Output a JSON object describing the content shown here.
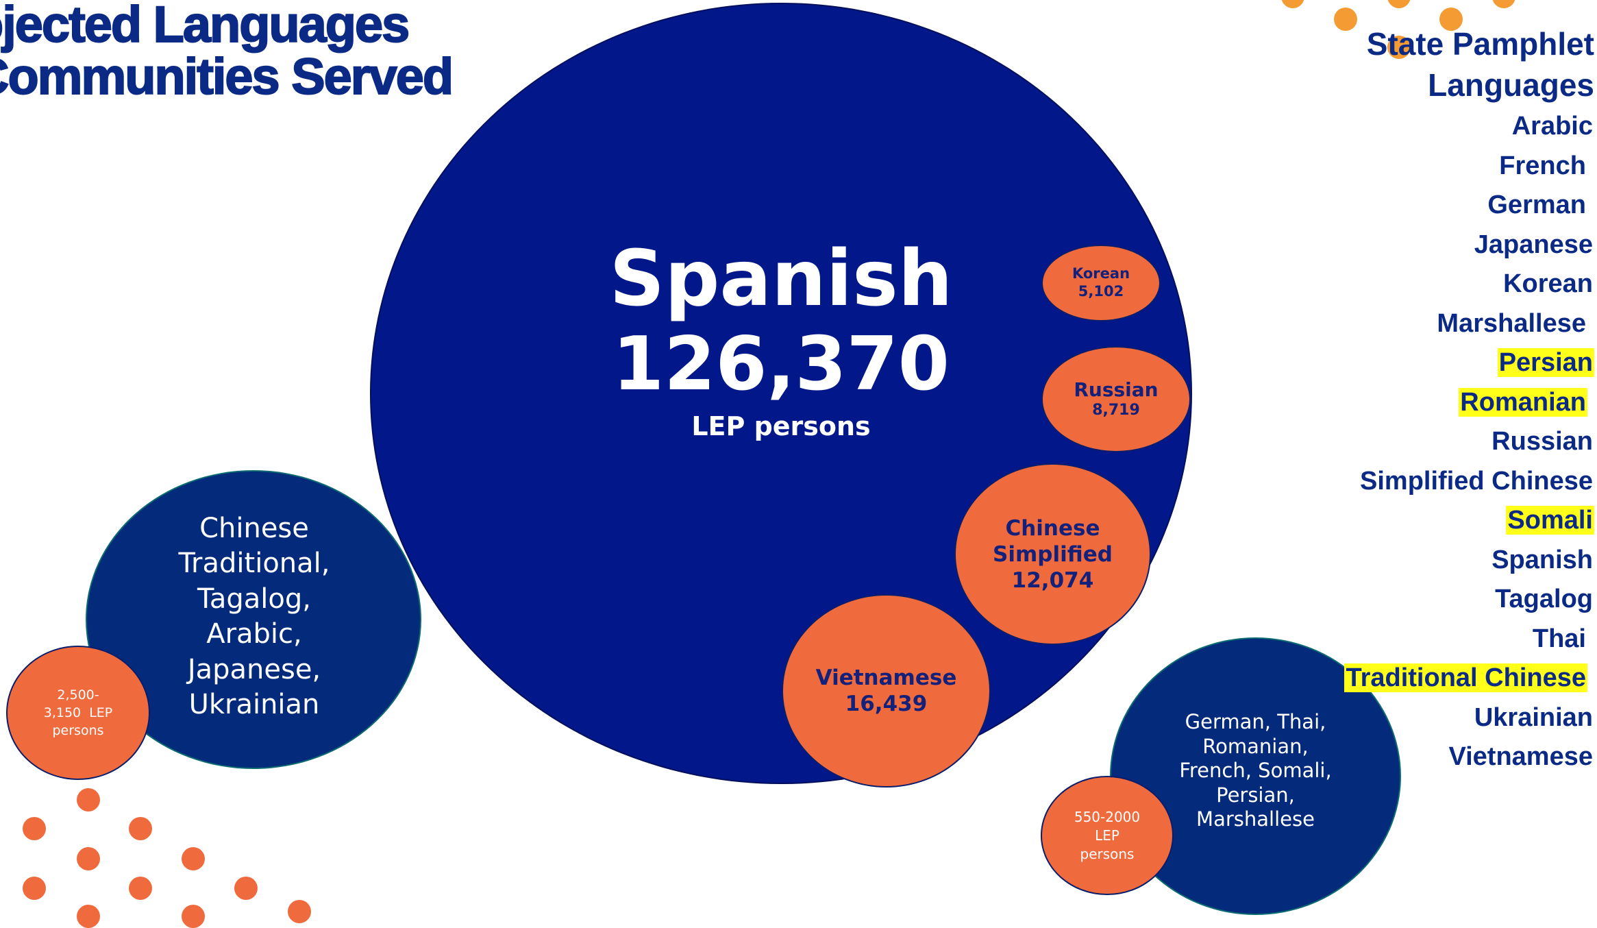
{
  "title": {
    "line1": "ojected Languages",
    "line2": "Communities Served"
  },
  "bubbles": {
    "spanish": {
      "name": "Spanish",
      "count": "126,370",
      "unit": "LEP persons"
    },
    "korean": {
      "name": "Korean",
      "count": "5,102"
    },
    "russian": {
      "name": "Russian",
      "count": "8,719"
    },
    "chinese_simplified": {
      "line1": "Chinese",
      "line2": "Simplified",
      "count": "12,074"
    },
    "vietnamese": {
      "name": "Vietnamese",
      "count": "16,439"
    },
    "group_mid": {
      "lines": [
        "Chinese",
        "Traditional,",
        "Tagalog,",
        "Arabic,",
        "Japanese,",
        "Ukrainian"
      ],
      "range": [
        "2,500-",
        "3,150  LEP",
        "persons"
      ]
    },
    "group_small": {
      "lines": [
        "German, Thai,",
        "Romanian,",
        "French, Somali,",
        "Persian,",
        "Marshallese"
      ],
      "range": [
        "550-2000",
        "LEP",
        "persons"
      ]
    }
  },
  "pamphlet": {
    "heading": [
      "State Pamphlet",
      "Languages"
    ],
    "languages": [
      {
        "name": "Arabic",
        "highlight": false
      },
      {
        "name": "French",
        "highlight": false
      },
      {
        "name": "German",
        "highlight": false
      },
      {
        "name": "Japanese",
        "highlight": false
      },
      {
        "name": "Korean",
        "highlight": false
      },
      {
        "name": "Marshallese",
        "highlight": false
      },
      {
        "name": "Persian",
        "highlight": true
      },
      {
        "name": "Romanian",
        "highlight": true
      },
      {
        "name": "Russian",
        "highlight": false
      },
      {
        "name": "Simplified Chinese",
        "highlight": false
      },
      {
        "name": "Somali",
        "highlight": true
      },
      {
        "name": "Spanish",
        "highlight": false
      },
      {
        "name": "Tagalog",
        "highlight": false
      },
      {
        "name": "Thai",
        "highlight": false
      },
      {
        "name": "Traditional Chinese",
        "highlight": true
      },
      {
        "name": "Ukrainian",
        "highlight": false
      },
      {
        "name": "Vietnamese",
        "highlight": false
      }
    ]
  },
  "colors": {
    "navy_dark": "#02188a",
    "navy": "#032a7b",
    "orange": "#ef6a3c",
    "gold": "#f49b33",
    "highlight": "#ffff1a",
    "title": "#0b2a86"
  }
}
